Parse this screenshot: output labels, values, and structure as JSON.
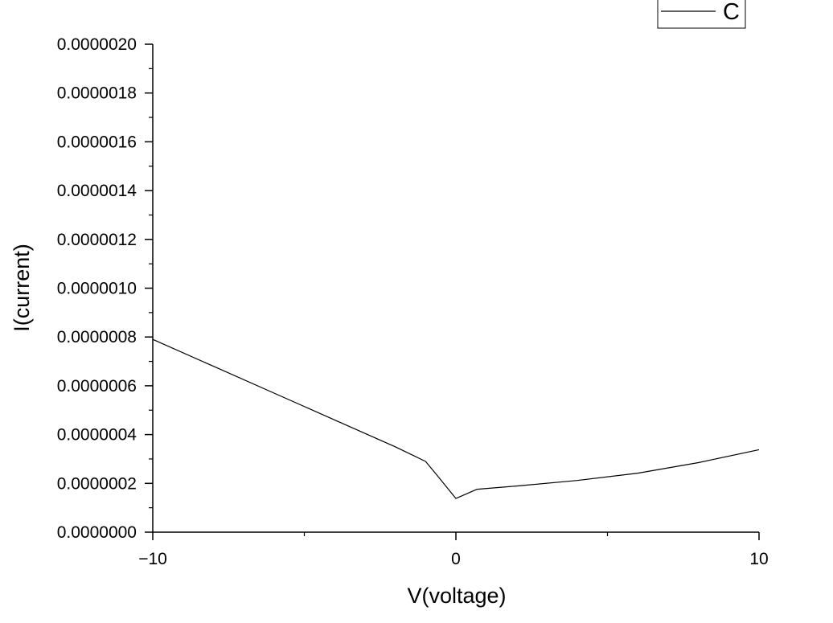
{
  "chart_data": {
    "type": "line",
    "title": "",
    "xlabel": "V(voltage)",
    "ylabel": "I(current)",
    "xlim": [
      -10,
      10
    ],
    "ylim": [
      0,
      2e-06
    ],
    "x_ticks": [
      -10,
      0,
      10
    ],
    "x_tick_labels": [
      "−10",
      "0",
      "10"
    ],
    "y_ticks": [
      0,
      2e-07,
      4e-07,
      6e-07,
      8e-07,
      1e-06,
      1.2e-06,
      1.4e-06,
      1.6e-06,
      1.8e-06,
      2e-06
    ],
    "y_tick_labels": [
      "0.0000000",
      "0.0000002",
      "0.0000004",
      "0.0000006",
      "0.0000008",
      "0.0000010",
      "0.0000012",
      "0.0000014",
      "0.0000016",
      "0.0000018",
      "0.0000020"
    ],
    "grid": false,
    "legend_position": "top-right",
    "line_color": "#000000",
    "series": [
      {
        "name": "C",
        "x": [
          -10,
          -8,
          -6,
          -4,
          -2,
          -1,
          -0.6,
          0,
          0.7,
          2,
          4,
          6,
          8,
          10
        ],
        "y": [
          7.9e-07,
          6.8e-07,
          5.7e-07,
          4.6e-07,
          3.5e-07,
          2.9e-07,
          2.3e-07,
          1.38e-07,
          1.76e-07,
          1.89e-07,
          2.12e-07,
          2.42e-07,
          2.85e-07,
          3.38e-07
        ]
      }
    ]
  }
}
